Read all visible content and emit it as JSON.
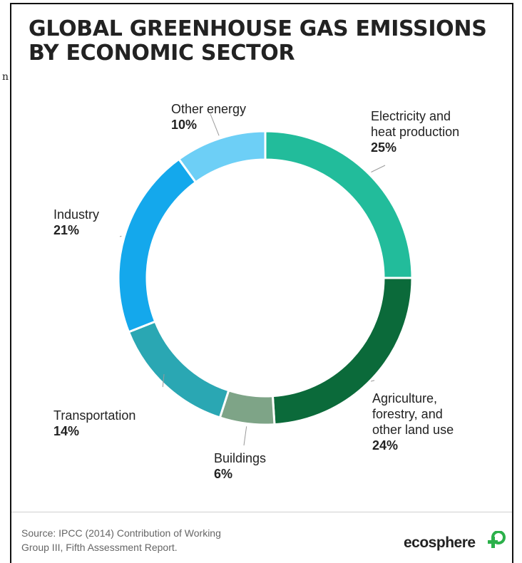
{
  "title": {
    "line1": "GLOBAL GREENHOUSE GAS EMISSIONS",
    "line2": "BY ECONOMIC SECTOR"
  },
  "stray_text": "n",
  "chart_data": {
    "type": "pie",
    "donut": true,
    "title": "GLOBAL GREENHOUSE GAS EMISSIONS BY ECONOMIC SECTOR",
    "slices": [
      {
        "label": "Electricity and heat production",
        "display_label": "Electricity and\nheat production",
        "value": 25,
        "display_value": "25%",
        "color": "#22bc9b"
      },
      {
        "label": "Agriculture, forestry, and other land use",
        "display_label": "Agriculture,\nforestry, and\nother land use",
        "value": 24,
        "display_value": "24%",
        "color": "#0b6a3a"
      },
      {
        "label": "Buildings",
        "display_label": "Buildings",
        "value": 6,
        "display_value": "6%",
        "color": "#7ea487"
      },
      {
        "label": "Transportation",
        "display_label": "Transportation",
        "value": 14,
        "display_value": "14%",
        "color": "#2aa7b3"
      },
      {
        "label": "Industry",
        "display_label": "Industry",
        "value": 21,
        "display_value": "21%",
        "color": "#14a8ec"
      },
      {
        "label": "Other energy",
        "display_label": "Other energy",
        "value": 10,
        "display_value": "10%",
        "color": "#6dcff6"
      }
    ]
  },
  "source": "Source: IPCC (2014) Contribution of Working\nGroup III, Fifth Assessment Report.",
  "logo": {
    "text": "ecosphere+",
    "name": "ecosphere-logo"
  }
}
